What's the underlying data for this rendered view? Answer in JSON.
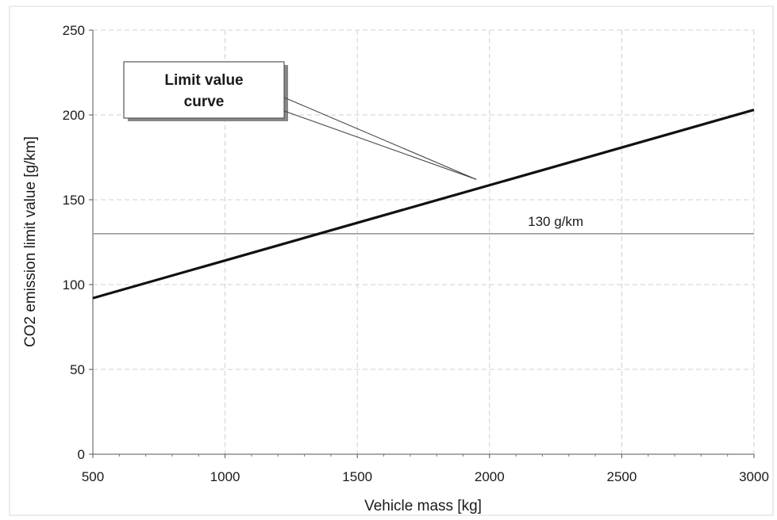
{
  "chart_data": {
    "type": "line",
    "title": "",
    "xlabel": "Vehicle mass [kg]",
    "ylabel": "CO2 emission limit value [g/km]",
    "xlim": [
      500,
      3000
    ],
    "ylim": [
      0,
      250
    ],
    "x_ticks": [
      500,
      1000,
      1500,
      2000,
      2500,
      3000
    ],
    "y_ticks": [
      0,
      50,
      100,
      150,
      200,
      250
    ],
    "grid": true,
    "series": [
      {
        "name": "Limit value curve",
        "x": [
          500,
          3000
        ],
        "y": [
          92,
          203
        ]
      },
      {
        "name": "130 g/km",
        "x": [
          500,
          3000
        ],
        "y": [
          130,
          130
        ]
      }
    ],
    "annotations": {
      "callout": {
        "line1": "Limit value",
        "line2": "curve",
        "pointer_x": 1950,
        "pointer_y": 162
      },
      "reference_label": "130 g/km",
      "reference_label_x": 2250
    },
    "colors": {
      "curve": "#111111",
      "reference": "#9a9a9a",
      "grid": "#d0d0d0"
    }
  }
}
